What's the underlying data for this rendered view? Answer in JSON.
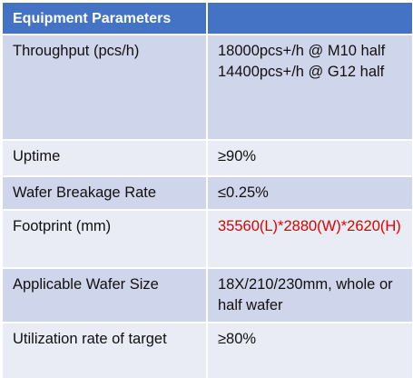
{
  "table": {
    "header": [
      "Equipment Parameters"
    ],
    "rows": [
      {
        "label": "Throughput (pcs/h)",
        "value": [
          "18000pcs+/h @ M10 half",
          "14400pcs+/h @ G12 half"
        ]
      },
      {
        "label": "Uptime",
        "value": [
          "≥90%"
        ]
      },
      {
        "label": "Wafer Breakage Rate",
        "value": [
          "≤0.25%"
        ]
      },
      {
        "label": "Footprint (mm)",
        "value": [
          "35560(L)*2880(W)*2620(H)"
        ],
        "color": "#e00000"
      },
      {
        "label": "Applicable Wafer Size",
        "value": [
          "18X/210/230mm, whole or half wafer"
        ]
      },
      {
        "label": "Utilization rate of target",
        "value": [
          "≥80%"
        ]
      }
    ]
  }
}
